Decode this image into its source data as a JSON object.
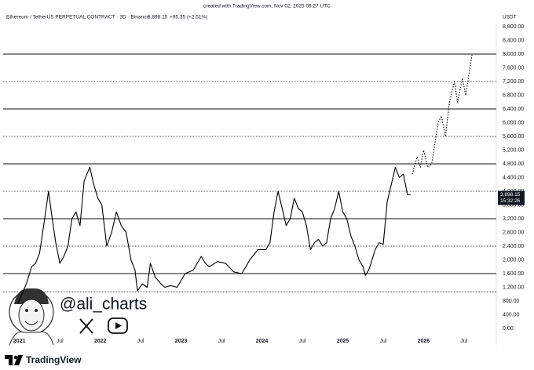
{
  "chart_data": {
    "type": "line",
    "created": "created with TradingView.com, Nov 02, 2025 08:27 UTC",
    "title": "Ethereum / TetherUS PERPETUAL CONTRACT · 3D · Binance",
    "price": "3,898.15",
    "change": "+95.35 (+2.51%)",
    "y_axis_label": "USDT",
    "countdown": "15:32:26",
    "watermark": "@ali_charts",
    "brand": "TradingView",
    "xlim": [
      2020.76,
      2026.87
    ],
    "ylim": [
      0,
      8800
    ],
    "xticks": [
      {
        "value": 2021,
        "label": "2021"
      },
      {
        "value": 2021.5,
        "label": "Jul"
      },
      {
        "value": 2022,
        "label": "2022"
      },
      {
        "value": 2022.5,
        "label": "Jul"
      },
      {
        "value": 2023,
        "label": "2023"
      },
      {
        "value": 2023.5,
        "label": "Jul"
      },
      {
        "value": 2024,
        "label": "2024"
      },
      {
        "value": 2024.5,
        "label": "Jul"
      },
      {
        "value": 2025,
        "label": "2025"
      },
      {
        "value": 2025.5,
        "label": "Jul"
      },
      {
        "value": 2026,
        "label": "2026"
      },
      {
        "value": 2026.5,
        "label": "Jul"
      }
    ],
    "yticks": [
      {
        "value": 0,
        "label": "0.00"
      },
      {
        "value": 400,
        "label": "400.00"
      },
      {
        "value": 800,
        "label": "800.00"
      },
      {
        "value": 1200,
        "label": "1,200.00"
      },
      {
        "value": 1600,
        "label": "1,600.00"
      },
      {
        "value": 2000,
        "label": "2,000.00"
      },
      {
        "value": 2400,
        "label": "2,400.00"
      },
      {
        "value": 2800,
        "label": "2,800.00"
      },
      {
        "value": 3200,
        "label": "3,200.00"
      },
      {
        "value": 3600,
        "label": "3,600.00"
      },
      {
        "value": 4000,
        "label": "4,000.00"
      },
      {
        "value": 4400,
        "label": "4,400.00"
      },
      {
        "value": 4800,
        "label": "4,800.00"
      },
      {
        "value": 5200,
        "label": "5,200.00"
      },
      {
        "value": 5600,
        "label": "5,600.00"
      },
      {
        "value": 6000,
        "label": "6,000.00"
      },
      {
        "value": 6400,
        "label": "6,400.00"
      },
      {
        "value": 6800,
        "label": "6,800.00"
      },
      {
        "value": 7200,
        "label": "7,200.00"
      },
      {
        "value": 7600,
        "label": "7,600.00"
      },
      {
        "value": 8000,
        "label": "8,000.00"
      },
      {
        "value": 8400,
        "label": "8,400.00"
      },
      {
        "value": 8800,
        "label": "8,800.00"
      }
    ],
    "levels": [
      {
        "value": 8000,
        "style": "solid"
      },
      {
        "value": 7200,
        "style": "dotted"
      },
      {
        "value": 6400,
        "style": "solid"
      },
      {
        "value": 5600,
        "style": "dotted"
      },
      {
        "value": 4800,
        "style": "solid"
      },
      {
        "value": 4000,
        "style": "dotted"
      },
      {
        "value": 3200,
        "style": "solid"
      },
      {
        "value": 2400,
        "style": "dotted"
      },
      {
        "value": 1600,
        "style": "solid"
      },
      {
        "value": 1070,
        "style": "dotted"
      }
    ],
    "series": [
      {
        "color": "#000000",
        "style": "solid",
        "x": [
          2020.98,
          2021.05,
          2021.1,
          2021.15,
          2021.2,
          2021.25,
          2021.3,
          2021.36,
          2021.4,
          2021.45,
          2021.5,
          2021.55,
          2021.6,
          2021.65,
          2021.7,
          2021.75,
          2021.8,
          2021.87,
          2021.92,
          2021.97,
          2022.02,
          2022.08,
          2022.14,
          2022.2,
          2022.26,
          2022.32,
          2022.38,
          2022.43,
          2022.46,
          2022.52,
          2022.58,
          2022.62,
          2022.68,
          2022.75,
          2022.8,
          2022.87,
          2022.95,
          2023.05,
          2023.15,
          2023.25,
          2023.3,
          2023.35,
          2023.45,
          2023.55,
          2023.65,
          2023.75,
          2023.8,
          2023.85,
          2023.95,
          2024.05,
          2024.1,
          2024.15,
          2024.2,
          2024.25,
          2024.3,
          2024.35,
          2024.4,
          2024.45,
          2024.5,
          2024.55,
          2024.6,
          2024.65,
          2024.7,
          2024.75,
          2024.8,
          2024.85,
          2024.9,
          2024.95,
          2025.0,
          2025.05,
          2025.1,
          2025.15,
          2025.2,
          2025.25,
          2025.28,
          2025.32,
          2025.35,
          2025.4,
          2025.45,
          2025.5,
          2025.55,
          2025.6,
          2025.65,
          2025.7,
          2025.75,
          2025.8,
          2025.84
        ],
        "values": [
          730,
          1100,
          1400,
          1800,
          1900,
          2200,
          3000,
          4000,
          3300,
          2500,
          1900,
          2100,
          2400,
          3200,
          3400,
          3000,
          4300,
          4700,
          4200,
          3800,
          3600,
          2400,
          2800,
          3400,
          3000,
          2800,
          2000,
          1700,
          1100,
          1300,
          1200,
          1900,
          1500,
          1300,
          1200,
          1250,
          1200,
          1600,
          1700,
          2100,
          1900,
          1800,
          1950,
          1900,
          1650,
          1600,
          1800,
          2000,
          2300,
          2300,
          2500,
          3400,
          4000,
          3500,
          3000,
          3200,
          3800,
          3500,
          3400,
          3000,
          2300,
          2500,
          2600,
          2400,
          2500,
          3200,
          3500,
          4000,
          3400,
          3200,
          2700,
          2400,
          2000,
          1800,
          1550,
          1700,
          1900,
          2300,
          2500,
          2450,
          3700,
          4200,
          4700,
          4400,
          4500,
          3900,
          3898.15
        ]
      },
      {
        "color": "#000000",
        "style": "dotted",
        "x": [
          2025.86,
          2025.92,
          2025.96,
          2026.0,
          2026.05,
          2026.1,
          2026.18,
          2026.22,
          2026.27,
          2026.32,
          2026.38,
          2026.42,
          2026.48,
          2026.52,
          2026.6
        ],
        "values": [
          4500,
          5000,
          4700,
          5200,
          4700,
          4800,
          6000,
          6200,
          5600,
          6600,
          7200,
          6600,
          7300,
          6800,
          8000
        ]
      }
    ]
  }
}
